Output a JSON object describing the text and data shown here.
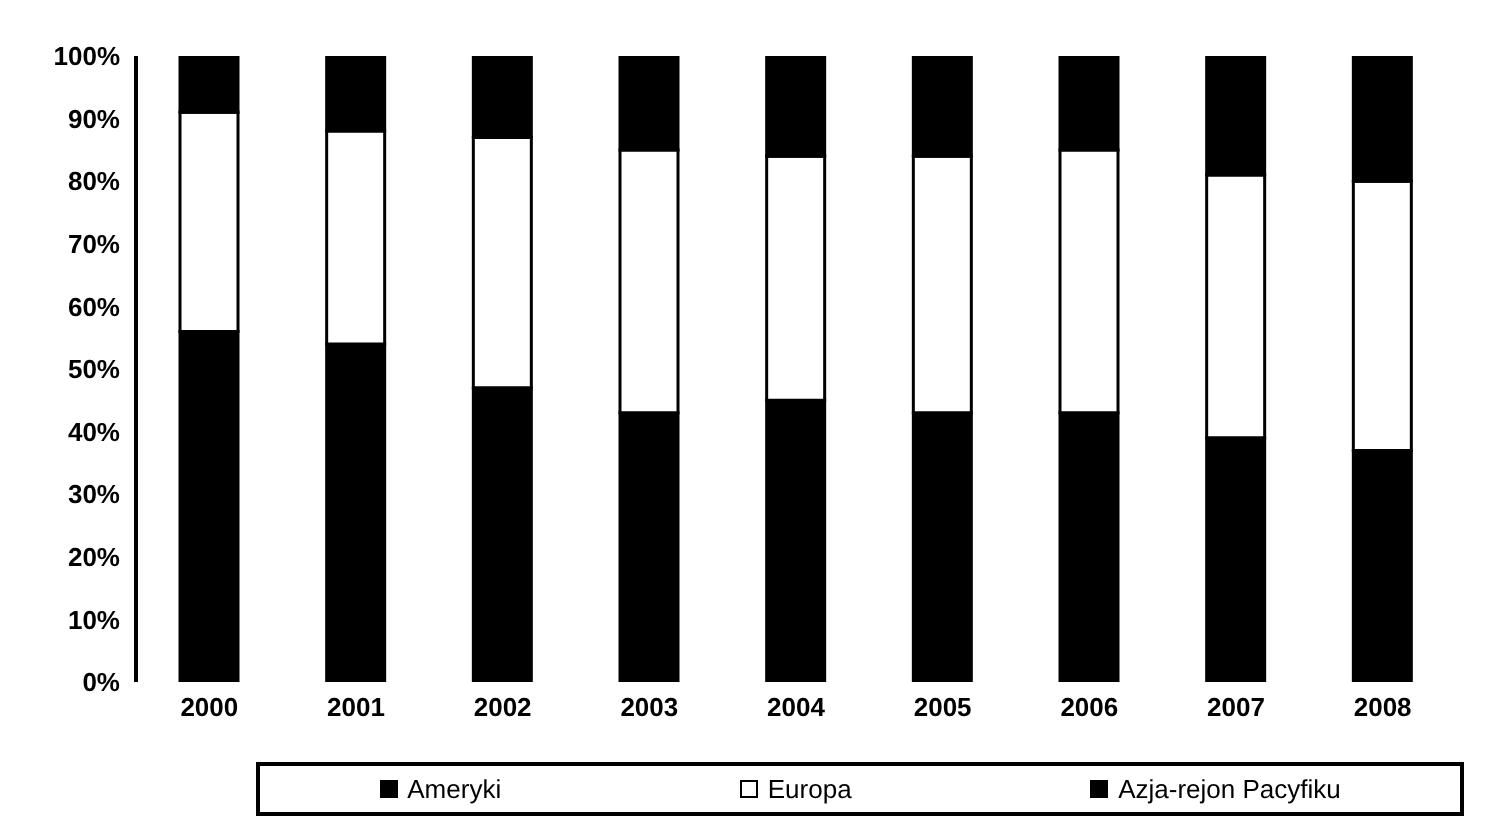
{
  "chart_data": {
    "type": "bar",
    "stacked": true,
    "categories": [
      "2000",
      "2001",
      "2002",
      "2003",
      "2004",
      "2005",
      "2006",
      "2007",
      "2008"
    ],
    "series": [
      {
        "name": "Ameryki",
        "color": "#000000",
        "values": [
          56,
          54,
          47,
          43,
          45,
          43,
          43,
          39,
          37
        ]
      },
      {
        "name": "Europa",
        "color": "#ffffff",
        "values": [
          35,
          34,
          40,
          42,
          39,
          41,
          42,
          42,
          43
        ]
      },
      {
        "name": "Azja-rejon Pacyfiku",
        "color": "#000000",
        "values": [
          9,
          12,
          13,
          15,
          16,
          16,
          15,
          19,
          20
        ]
      }
    ],
    "ylim": [
      0,
      100
    ],
    "yticks": [
      {
        "value": 0,
        "label": "0%"
      },
      {
        "value": 10,
        "label": "10%"
      },
      {
        "value": 20,
        "label": "20%"
      },
      {
        "value": 30,
        "label": "30%"
      },
      {
        "value": 40,
        "label": "40%"
      },
      {
        "value": 50,
        "label": "50%"
      },
      {
        "value": 60,
        "label": "60%"
      },
      {
        "value": 70,
        "label": "70%"
      },
      {
        "value": 80,
        "label": "80%"
      },
      {
        "value": 90,
        "label": "90%"
      },
      {
        "value": 100,
        "label": "100%"
      }
    ],
    "legend": "bottom"
  }
}
